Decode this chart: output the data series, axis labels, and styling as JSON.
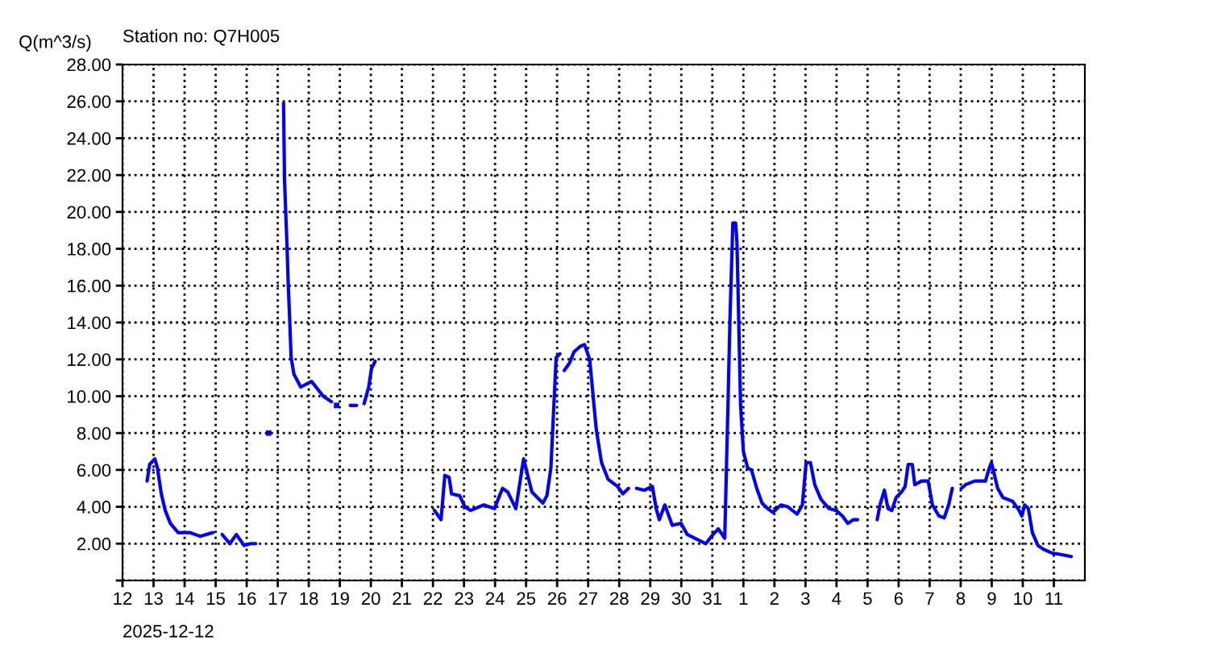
{
  "chart_data": {
    "type": "line",
    "title": "Station no: Q7H005",
    "ylabel": "Q(m^3/s)",
    "annotations": [
      "2025-12-12"
    ],
    "xlim": [
      "2025-12-12",
      "2026-01-12"
    ],
    "xticks": [
      {
        "value": "2025-12-12",
        "label": "12"
      },
      {
        "value": "2025-12-13",
        "label": "13"
      },
      {
        "value": "2025-12-14",
        "label": "14"
      },
      {
        "value": "2025-12-15",
        "label": "15"
      },
      {
        "value": "2025-12-16",
        "label": "16"
      },
      {
        "value": "2025-12-17",
        "label": "17"
      },
      {
        "value": "2025-12-18",
        "label": "18"
      },
      {
        "value": "2025-12-19",
        "label": "19"
      },
      {
        "value": "2025-12-20",
        "label": "20"
      },
      {
        "value": "2025-12-21",
        "label": "21"
      },
      {
        "value": "2025-12-22",
        "label": "22"
      },
      {
        "value": "2025-12-23",
        "label": "23"
      },
      {
        "value": "2025-12-24",
        "label": "24"
      },
      {
        "value": "2025-12-25",
        "label": "25"
      },
      {
        "value": "2025-12-26",
        "label": "26"
      },
      {
        "value": "2025-12-27",
        "label": "27"
      },
      {
        "value": "2025-12-28",
        "label": "28"
      },
      {
        "value": "2025-12-29",
        "label": "29"
      },
      {
        "value": "2025-12-30",
        "label": "30"
      },
      {
        "value": "2025-12-31",
        "label": "31"
      },
      {
        "value": "2026-01-01",
        "label": "1"
      },
      {
        "value": "2026-01-02",
        "label": "2"
      },
      {
        "value": "2026-01-03",
        "label": "3"
      },
      {
        "value": "2026-01-04",
        "label": "4"
      },
      {
        "value": "2026-01-05",
        "label": "5"
      },
      {
        "value": "2026-01-06",
        "label": "6"
      },
      {
        "value": "2026-01-07",
        "label": "7"
      },
      {
        "value": "2026-01-08",
        "label": "8"
      },
      {
        "value": "2026-01-09",
        "label": "9"
      },
      {
        "value": "2026-01-10",
        "label": "10"
      },
      {
        "value": "2026-01-11",
        "label": "11"
      }
    ],
    "ylim": [
      0,
      28
    ],
    "yticks": [
      {
        "value": 0,
        "label": null
      },
      {
        "value": 2,
        "label": "2.00"
      },
      {
        "value": 4,
        "label": "4.00"
      },
      {
        "value": 6,
        "label": "6.00"
      },
      {
        "value": 8,
        "label": "8.00"
      },
      {
        "value": 10,
        "label": "10.00"
      },
      {
        "value": 12,
        "label": "12.00"
      },
      {
        "value": 14,
        "label": "14.00"
      },
      {
        "value": 16,
        "label": "16.00"
      },
      {
        "value": 18,
        "label": "18.00"
      },
      {
        "value": 20,
        "label": "20.00"
      },
      {
        "value": 22,
        "label": "22.00"
      },
      {
        "value": 24,
        "label": "24.00"
      },
      {
        "value": 26,
        "label": "26.00"
      },
      {
        "value": 28,
        "label": "28.00"
      }
    ],
    "grid": true,
    "legend": false,
    "marker": "none",
    "line_style": "solid",
    "series": [
      {
        "color": "#0000ff",
        "x": [
          "2025-12-12T19:00",
          "2025-12-12T21:00",
          "2025-12-13T01:00",
          "2025-12-13T03:00",
          "2025-12-13T06:00",
          "2025-12-13T09:00",
          "2025-12-13T13:00",
          "2025-12-13T19:00",
          "2025-12-14T04:00",
          "2025-12-14T12:00",
          "2025-12-14T22:00",
          "2025-12-15T01:00",
          "2025-12-15T05:00",
          "2025-12-15T11:00",
          "2025-12-15T16:00",
          "2025-12-15T22:00",
          "2025-12-16T03:00",
          "2025-12-16T07:00",
          "2025-12-16T12:00",
          "2025-12-17T04:30",
          "2025-12-17T05:15",
          "2025-12-17T07:00",
          "2025-12-17T08:10",
          "2025-12-17T09:20",
          "2025-12-17T10:20",
          "2025-12-17T12:30",
          "2025-12-17T17:45",
          "2025-12-18T02:10",
          "2025-12-18T11:15",
          "2025-12-18T17:30",
          "2025-12-18T19:00",
          "2025-12-19T08:00",
          "2025-12-19T13:00",
          "2025-12-19T15:00",
          "2025-12-19T18:45",
          "2025-12-19T22:20",
          "2025-12-20T00:30",
          "2025-12-20T03:20",
          "2025-12-20T12:00",
          "2025-12-22T01:10",
          "2025-12-22T06:15",
          "2025-12-22T09:10",
          "2025-12-22T12:30",
          "2025-12-22T14:25",
          "2025-12-22T20:40",
          "2025-12-23T00:45",
          "2025-12-23T05:00",
          "2025-12-23T15:20",
          "2025-12-23T23:30",
          "2025-12-24T05:45",
          "2025-12-24T09:50",
          "2025-12-24T16:05",
          "2025-12-24T19:25",
          "2025-12-24T22:05",
          "2025-12-25T04:30",
          "2025-12-25T13:00",
          "2025-12-25T16:05",
          "2025-12-25T19:10",
          "2025-12-25T23:15",
          "2025-12-26T02:10",
          "2025-12-26T03:30",
          "2025-12-26T05:30",
          "2025-12-26T09:35",
          "2025-12-26T13:00",
          "2025-12-26T17:45",
          "2025-12-26T21:10",
          "2025-12-27T01:10",
          "2025-12-27T06:15",
          "2025-12-27T10:20",
          "2025-12-27T15:20",
          "2025-12-27T22:50",
          "2025-12-28T02:50",
          "2025-12-28T07:10",
          "2025-12-28T09:00",
          "2025-12-28T13:25",
          "2025-12-28T19:25",
          "2025-12-29T01:40",
          "2025-12-29T04:35",
          "2025-12-29T07:00",
          "2025-12-29T11:15",
          "2025-12-29T17:00",
          "2025-12-29T23:45",
          "2025-12-30T04:35",
          "2025-12-30T13:00",
          "2025-12-30T19:00",
          "2025-12-31T00:30",
          "2025-12-31T04:35",
          "2025-12-31T09:35",
          "2025-12-31T12:00",
          "2025-12-31T13:40",
          "2025-12-31T15:50",
          "2025-12-31T18:00",
          "2025-12-31T19:00",
          "2025-12-31T19:55",
          "2025-12-31T21:50",
          "2026-01-01T00:00",
          "2026-01-01T03:20",
          "2026-01-01T06:15",
          "2026-01-01T10:20",
          "2026-01-01T14:25",
          "2026-01-01T18:45",
          "2026-01-01T22:50",
          "2026-01-02T05:00",
          "2026-01-02T10:20",
          "2026-01-02T17:30",
          "2026-01-02T21:35",
          "2026-01-03T00:30",
          "2026-01-03T03:50",
          "2026-01-03T07:10",
          "2026-01-03T12:00",
          "2026-01-03T18:15",
          "2026-01-03T23:45",
          "2026-01-04T04:35",
          "2026-01-04T08:50",
          "2026-01-04T13:00",
          "2026-01-04T16:20",
          "2026-01-04T20:00",
          "2026-01-05T07:25",
          "2026-01-05T09:35",
          "2026-01-05T13:00",
          "2026-01-05T15:50",
          "2026-01-05T18:45",
          "2026-01-05T22:05",
          "2026-01-06T02:10",
          "2026-01-06T05:00",
          "2026-01-06T07:25",
          "2026-01-06T10:35",
          "2026-01-06T12:30",
          "2026-01-06T17:45",
          "2026-01-06T22:50",
          "2026-01-07T02:10",
          "2026-01-07T07:10",
          "2026-01-07T11:15",
          "2026-01-07T14:40",
          "2026-01-07T17:30",
          "2026-01-07T20:00",
          "2026-01-08T00:30",
          "2026-01-08T03:50",
          "2026-01-08T10:50",
          "2026-01-08T19:10",
          "2026-01-08T21:35",
          "2026-01-08T23:45",
          "2026-01-09T04:35",
          "2026-01-09T08:40",
          "2026-01-09T16:05",
          "2026-01-09T21:10",
          "2026-01-09T23:15",
          "2026-01-10T01:25",
          "2026-01-10T04:20",
          "2026-01-10T07:25",
          "2026-01-10T11:45",
          "2026-01-10T15:50",
          "2026-01-10T22:05",
          "2026-01-11T06:15",
          "2026-01-11T13:25"
        ],
        "values": [
          5.4,
          6.3,
          6.6,
          6.1,
          4.7,
          3.8,
          3.1,
          2.6,
          2.6,
          2.4,
          2.6,
          null,
          2.5,
          2.0,
          2.5,
          1.9,
          2.0,
          2.0,
          null,
          25.9,
          21.7,
          18.5,
          16.0,
          14.0,
          12.1,
          11.2,
          10.5,
          10.8,
          10.0,
          9.7,
          null,
          9.5,
          9.5,
          null,
          9.6,
          10.5,
          11.5,
          11.9,
          null,
          3.8,
          3.3,
          5.7,
          5.6,
          4.7,
          4.6,
          4.0,
          3.8,
          4.1,
          3.9,
          5.0,
          4.8,
          3.9,
          5.4,
          6.6,
          4.8,
          4.2,
          4.6,
          6.1,
          12.1,
          12.3,
          null,
          11.4,
          11.8,
          12.4,
          12.7,
          12.8,
          12.0,
          8.2,
          6.4,
          5.5,
          5.1,
          4.7,
          5.0,
          null,
          5.0,
          4.9,
          5.1,
          3.9,
          3.3,
          4.1,
          3.0,
          3.1,
          2.5,
          2.2,
          2.0,
          2.5,
          2.8,
          2.3,
          9.3,
          14.3,
          19.4,
          19.4,
          18.4,
          15.6,
          9.5,
          7.0,
          6.1,
          6.0,
          5.0,
          4.2,
          3.9,
          3.7,
          4.1,
          4.0,
          3.6,
          4.1,
          6.4,
          6.4,
          5.2,
          4.4,
          3.9,
          3.8,
          3.5,
          3.1,
          3.3,
          3.3,
          null,
          3.3,
          4.1,
          4.9,
          3.9,
          3.8,
          4.5,
          4.8,
          5.1,
          6.3,
          6.3,
          5.2,
          5.4,
          5.4,
          4.1,
          3.5,
          3.4,
          4.1,
          5.0,
          null,
          5.0,
          5.2,
          5.4,
          5.4,
          6.0,
          6.4,
          5.0,
          4.5,
          4.3,
          3.8,
          3.5,
          4.1,
          3.9,
          2.6,
          1.9,
          1.7,
          1.5,
          1.4,
          1.3
        ]
      },
      {
        "type": "scatter",
        "marker": "square",
        "color": "#0000ff",
        "x": [
          "2025-12-16T17:00",
          "2025-12-18T21:30"
        ],
        "values": [
          8.0,
          9.5
        ]
      }
    ]
  }
}
